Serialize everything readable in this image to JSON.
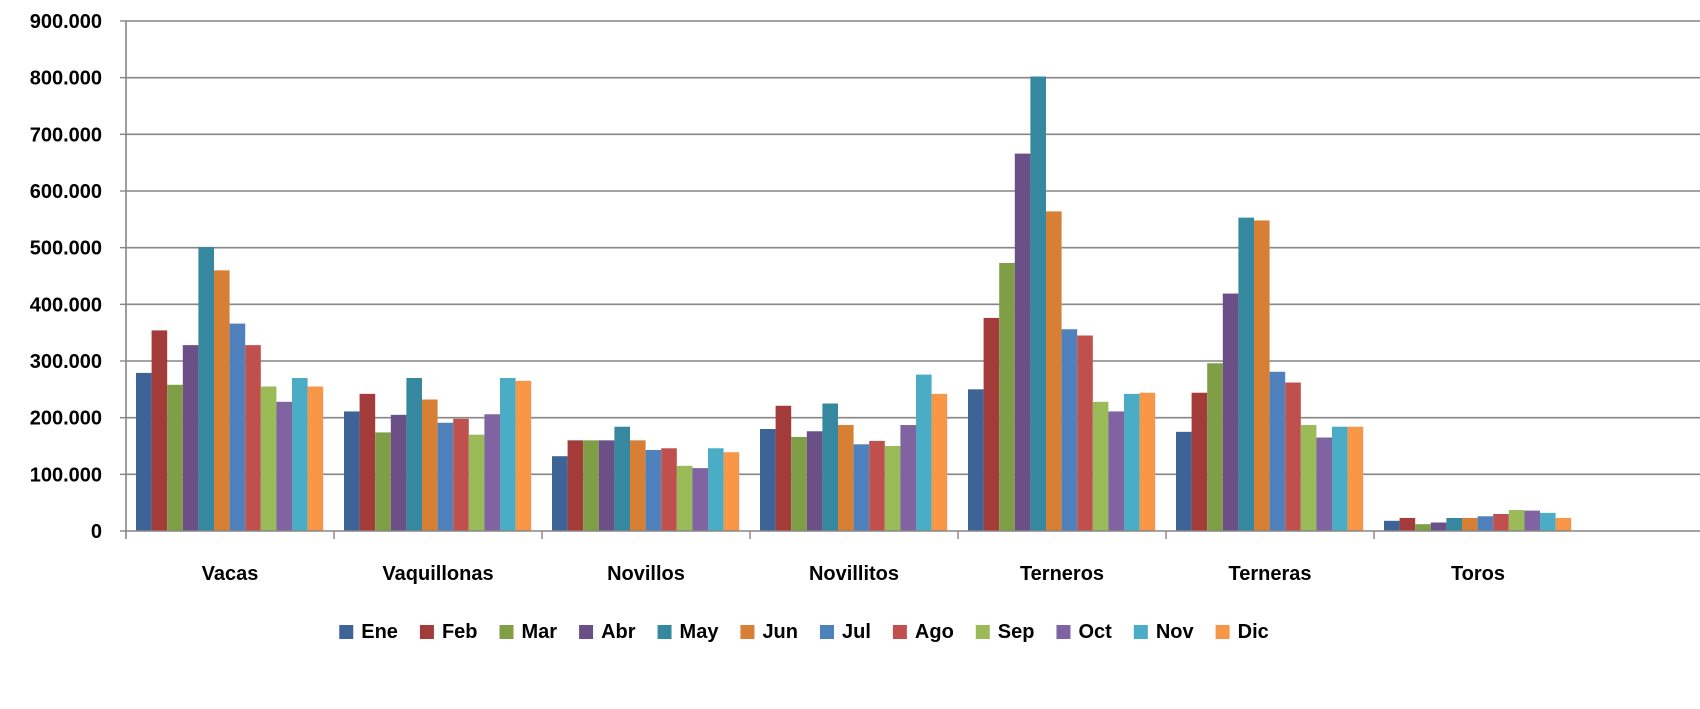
{
  "chart_data": {
    "type": "bar",
    "categories": [
      "Vacas",
      "Vaquillonas",
      "Novillos",
      "Novillitos",
      "Terneros",
      "Terneras",
      "Toros"
    ],
    "ylim": [
      0,
      900000
    ],
    "yticks": [
      "0",
      "100.000",
      "200.000",
      "300.000",
      "400.000",
      "500.000",
      "600.000",
      "700.000",
      "800.000",
      "900.000"
    ],
    "grid": true,
    "legend_position": "bottom",
    "series": [
      {
        "name": "Ene",
        "color": "#3E6397",
        "values": [
          279000,
          211000,
          132000,
          180000,
          250000,
          175000,
          18000
        ]
      },
      {
        "name": "Feb",
        "color": "#A23B3A",
        "values": [
          354000,
          242000,
          160000,
          221000,
          376000,
          244000,
          23000
        ]
      },
      {
        "name": "Mar",
        "color": "#809E45",
        "values": [
          258000,
          174000,
          160000,
          166000,
          473000,
          296000,
          12000
        ]
      },
      {
        "name": "Abr",
        "color": "#6A5087",
        "values": [
          328000,
          205000,
          160000,
          176000,
          666000,
          419000,
          15000
        ]
      },
      {
        "name": "May",
        "color": "#36889F",
        "values": [
          501000,
          270000,
          184000,
          225000,
          802000,
          553000,
          23000
        ]
      },
      {
        "name": "Jun",
        "color": "#D67F35",
        "values": [
          460000,
          232000,
          160000,
          187000,
          564000,
          548000,
          23000
        ]
      },
      {
        "name": "Jul",
        "color": "#4F81BD",
        "values": [
          366000,
          191000,
          143000,
          153000,
          356000,
          281000,
          26000
        ]
      },
      {
        "name": "Ago",
        "color": "#C0504D",
        "values": [
          328000,
          198000,
          146000,
          159000,
          345000,
          262000,
          30000
        ]
      },
      {
        "name": "Sep",
        "color": "#9BBB59",
        "values": [
          255000,
          170000,
          115000,
          150000,
          228000,
          187000,
          37000
        ]
      },
      {
        "name": "Oct",
        "color": "#8064A2",
        "values": [
          228000,
          206000,
          111000,
          187000,
          211000,
          165000,
          36000
        ]
      },
      {
        "name": "Nov",
        "color": "#4BACC6",
        "values": [
          270000,
          270000,
          146000,
          276000,
          242000,
          184000,
          32000
        ]
      },
      {
        "name": "Dic",
        "color": "#F79646",
        "values": [
          255000,
          265000,
          139000,
          242000,
          244000,
          184000,
          23000
        ]
      }
    ]
  }
}
